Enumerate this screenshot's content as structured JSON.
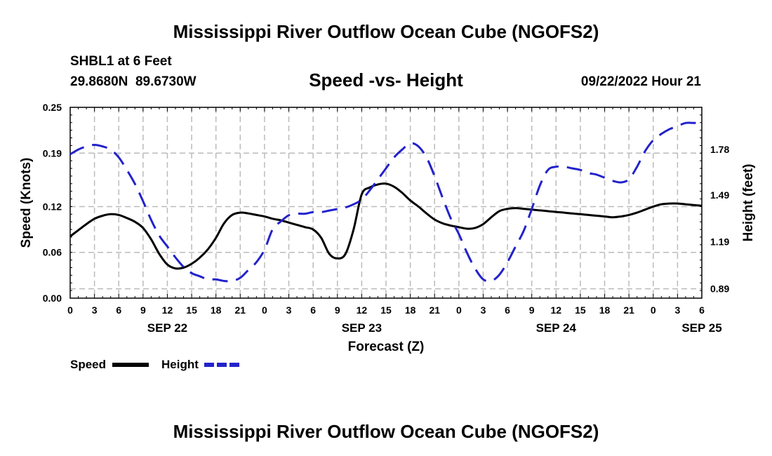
{
  "page": {
    "title_top": "Mississippi River Outflow Ocean Cube (NGOFS2)",
    "title_bottom": "Mississippi River Outflow Ocean Cube (NGOFS2)"
  },
  "station": {
    "name": "SHBL1 at 6 Feet",
    "coords": "29.8680N  89.6730W"
  },
  "timestamp": "09/22/2022 Hour 21",
  "chart_data": {
    "type": "line",
    "title": "Speed -vs- Height",
    "xlabel": "Forecast (Z)",
    "ylabel_left": "Speed (Knots)",
    "ylabel_right": "Height (feet)",
    "x_tick_labels": [
      "0",
      "3",
      "6",
      "9",
      "12",
      "15",
      "18",
      "21",
      "0",
      "3",
      "6",
      "9",
      "12",
      "15",
      "18",
      "21",
      "0",
      "3",
      "6",
      "9",
      "12",
      "15",
      "18",
      "21",
      "0",
      "3",
      "6"
    ],
    "date_labels": [
      {
        "label": "SEP 22",
        "hour": 12
      },
      {
        "label": "SEP 23",
        "hour": 36
      },
      {
        "label": "SEP 24",
        "hour": 60
      },
      {
        "label": "SEP 25",
        "hour": 78
      }
    ],
    "xlim": [
      0,
      78
    ],
    "speed_axis": {
      "ylim": [
        0,
        0.25
      ],
      "ticks": [
        0.0,
        0.06,
        0.12,
        0.19,
        0.25
      ],
      "tick_labels": [
        "0.00",
        "0.06",
        "0.12",
        "0.19",
        "0.25"
      ]
    },
    "height_axis": {
      "ylim": [
        0.83,
        2.05
      ],
      "ticks": [
        0.89,
        1.19,
        1.49,
        1.78
      ],
      "tick_labels": [
        "0.89",
        "1.19",
        "1.49",
        "1.78"
      ]
    },
    "grid": true,
    "series": [
      {
        "name": "Speed",
        "axis": "left",
        "color": "#000000",
        "style": "solid",
        "x": [
          0,
          1,
          2,
          3,
          4,
          5,
          6,
          7,
          8,
          9,
          10,
          11,
          12,
          13,
          14,
          15,
          16,
          17,
          18,
          19,
          20,
          21,
          22,
          23,
          24,
          25,
          26,
          27,
          28,
          29,
          30,
          31,
          32,
          33,
          34,
          35,
          36,
          37,
          38,
          39,
          40,
          41,
          42,
          43,
          44,
          45,
          46,
          47,
          48,
          49,
          50,
          51,
          52,
          53,
          54,
          55,
          56,
          57,
          58,
          59,
          60,
          61,
          62,
          63,
          64,
          65,
          66,
          67,
          68,
          69,
          70,
          71,
          72,
          73,
          74,
          75,
          76,
          77,
          78
        ],
        "values": [
          0.081,
          0.089,
          0.097,
          0.104,
          0.108,
          0.11,
          0.109,
          0.105,
          0.1,
          0.092,
          0.077,
          0.058,
          0.044,
          0.039,
          0.04,
          0.045,
          0.053,
          0.064,
          0.079,
          0.098,
          0.109,
          0.112,
          0.111,
          0.109,
          0.107,
          0.104,
          0.102,
          0.099,
          0.096,
          0.093,
          0.09,
          0.079,
          0.058,
          0.052,
          0.058,
          0.09,
          0.136,
          0.145,
          0.149,
          0.15,
          0.146,
          0.138,
          0.128,
          0.12,
          0.111,
          0.103,
          0.098,
          0.095,
          0.093,
          0.091,
          0.092,
          0.097,
          0.106,
          0.114,
          0.117,
          0.118,
          0.117,
          0.116,
          0.115,
          0.114,
          0.113,
          0.112,
          0.111,
          0.11,
          0.109,
          0.108,
          0.107,
          0.106,
          0.107,
          0.109,
          0.112,
          0.116,
          0.12,
          0.123,
          0.124,
          0.124,
          0.123,
          0.122,
          0.121
        ]
      },
      {
        "name": "Height",
        "axis": "right",
        "color": "#2222cc",
        "style": "dashed",
        "x": [
          0,
          1,
          2,
          3,
          4,
          5,
          6,
          7,
          8,
          9,
          10,
          11,
          12,
          13,
          14,
          15,
          16,
          17,
          18,
          19,
          20,
          21,
          22,
          23,
          24,
          25,
          26,
          27,
          28,
          29,
          30,
          31,
          32,
          33,
          34,
          35,
          36,
          37,
          38,
          39,
          40,
          41,
          42,
          43,
          44,
          45,
          46,
          47,
          48,
          49,
          50,
          51,
          52,
          53,
          54,
          55,
          56,
          57,
          58,
          59,
          60,
          61,
          62,
          63,
          64,
          65,
          66,
          67,
          68,
          69,
          70,
          71,
          72,
          73,
          74,
          75,
          76,
          77,
          78
        ],
        "values": [
          1.75,
          1.78,
          1.8,
          1.81,
          1.8,
          1.78,
          1.73,
          1.65,
          1.56,
          1.45,
          1.33,
          1.23,
          1.16,
          1.09,
          1.03,
          0.99,
          0.97,
          0.95,
          0.95,
          0.94,
          0.94,
          0.96,
          1.01,
          1.06,
          1.14,
          1.27,
          1.32,
          1.36,
          1.37,
          1.37,
          1.38,
          1.38,
          1.39,
          1.4,
          1.41,
          1.43,
          1.46,
          1.52,
          1.59,
          1.66,
          1.73,
          1.78,
          1.82,
          1.8,
          1.73,
          1.61,
          1.47,
          1.34,
          1.24,
          1.12,
          1.02,
          0.95,
          0.94,
          0.98,
          1.06,
          1.16,
          1.26,
          1.4,
          1.55,
          1.65,
          1.67,
          1.67,
          1.66,
          1.65,
          1.63,
          1.62,
          1.6,
          1.58,
          1.57,
          1.59,
          1.67,
          1.77,
          1.84,
          1.88,
          1.91,
          1.93,
          1.95,
          1.95,
          1.95
        ]
      }
    ],
    "legend": {
      "position": "bottom-left",
      "items": [
        "Speed",
        "Height"
      ]
    }
  }
}
